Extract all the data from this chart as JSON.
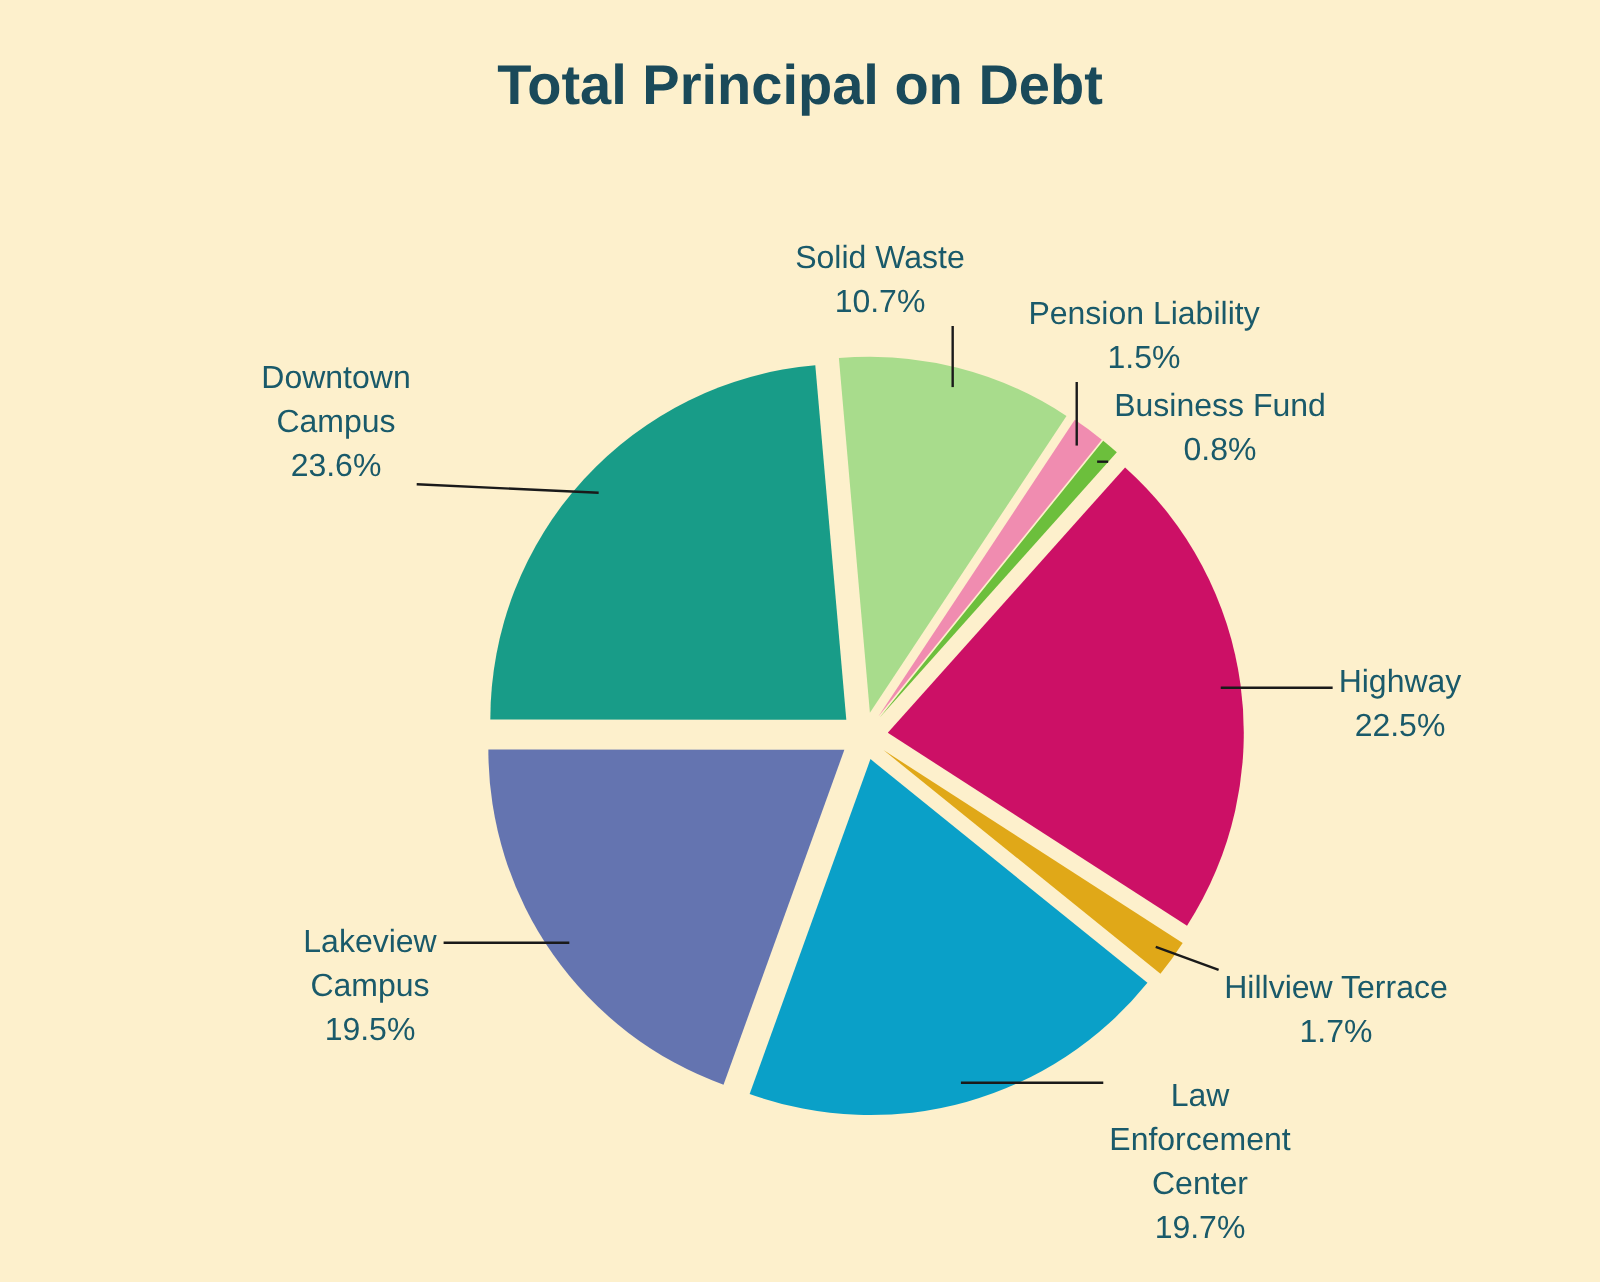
{
  "chart_data": {
    "type": "pie",
    "title": "Total Principal on Debt",
    "categories": [
      "Solid Waste",
      "Pension Liability",
      "Business Fund",
      "Highway",
      "Hillview Terrace",
      "Law Enforcement Center",
      "Lakeview Campus",
      "Downtown Campus"
    ],
    "values": [
      10.7,
      1.5,
      0.8,
      22.5,
      1.7,
      19.7,
      19.5,
      23.6
    ],
    "value_labels": [
      "10.7%",
      "1.5%",
      "0.8%",
      "22.5%",
      "1.7%",
      "19.7%",
      "19.5%",
      "23.6%"
    ],
    "colors": [
      "#a8dc8c",
      "#f08cb0",
      "#6cbf3c",
      "#cc1066",
      "#e0a818",
      "#0aa0c8",
      "#6474b0",
      "#189c88"
    ]
  }
}
